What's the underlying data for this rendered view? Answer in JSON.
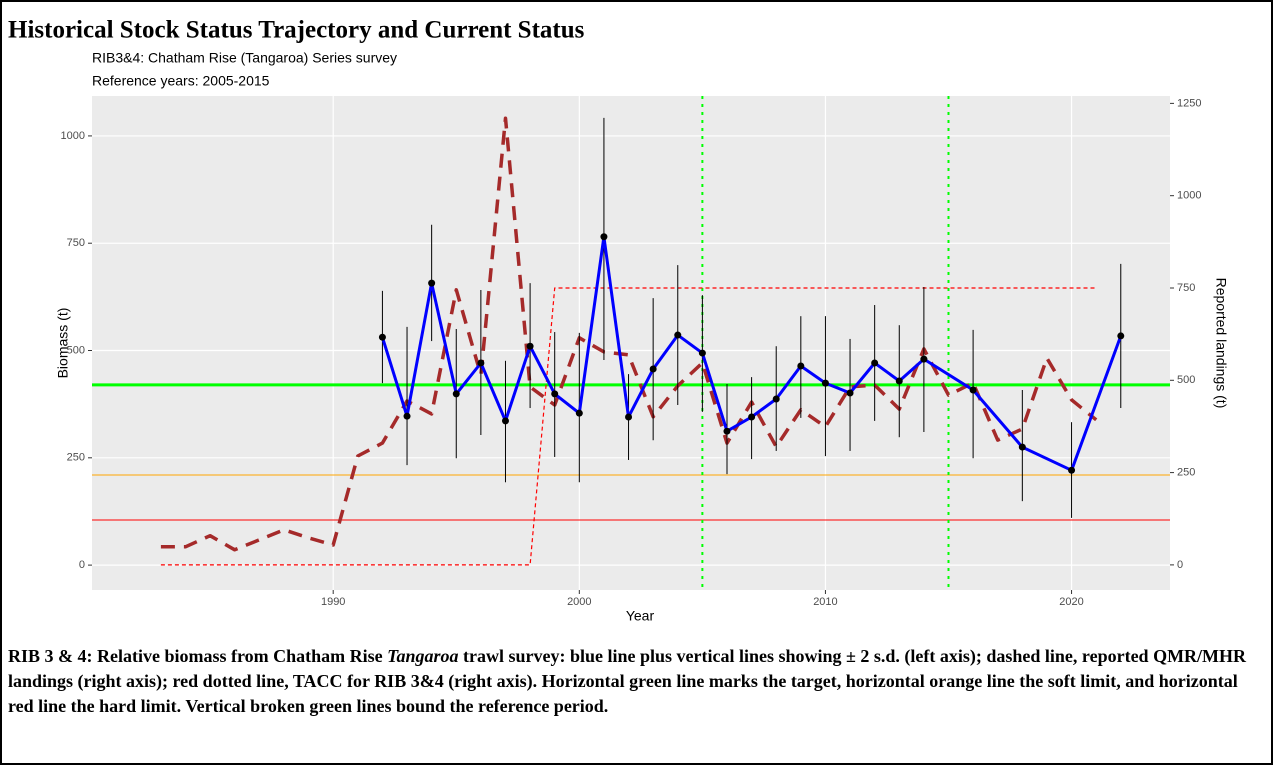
{
  "chart_data": {
    "type": "line",
    "title": "Historical Stock Status Trajectory and Current Status",
    "subtitle": [
      "RIB3&4: Chatham Rise (Tangaroa) Series survey",
      "Reference years: 2005-2015"
    ],
    "x_label": "Year",
    "y_label": "Biomass (t)",
    "y2_label": "Reported landings (t)",
    "xlim": [
      1980.2,
      2024.0
    ],
    "xticks": [
      1990,
      2000,
      2010,
      2020
    ],
    "ylim": [
      -58,
      1093
    ],
    "yticks": [
      0,
      250,
      500,
      750,
      1000
    ],
    "y2lim": [
      -68,
      1270
    ],
    "y2ticks": [
      0,
      250,
      500,
      750,
      1000,
      1250
    ],
    "grid": true,
    "series": [
      {
        "color": "#0000ff",
        "style": "solid",
        "markers": true,
        "x": [
          1992,
          1993,
          1994,
          1995,
          1996,
          1997,
          1998,
          1999,
          2000,
          2001,
          2002,
          2003,
          2004,
          2005,
          2006,
          2007,
          2008,
          2009,
          2010,
          2011,
          2012,
          2013,
          2014,
          2016,
          2018,
          2020,
          2022
        ],
        "values": [
          531,
          347,
          657,
          399,
          471,
          336,
          510,
          399,
          354,
          765,
          345,
          457,
          536,
          494,
          312,
          345,
          387,
          464,
          424,
          401,
          471,
          429,
          480,
          408,
          275,
          221,
          534
        ],
        "upper": [
          639,
          555,
          793,
          550,
          641,
          476,
          657,
          543,
          541,
          1042,
          445,
          622,
          699,
          629,
          422,
          438,
          510,
          580,
          580,
          527,
          606,
          559,
          648,
          548,
          408,
          333,
          702
        ],
        "lower": [
          424,
          233,
          522,
          249,
          303,
          193,
          366,
          252,
          193,
          478,
          245,
          291,
          373,
          357,
          212,
          247,
          266,
          343,
          254,
          266,
          336,
          298,
          310,
          249,
          149,
          110,
          366
        ]
      },
      {
        "color": "#a52a2a",
        "style": "dashed",
        "axis": "y2",
        "x": [
          1983,
          1984,
          1985,
          1986,
          1987,
          1988,
          1989,
          1990,
          1991,
          1992,
          1993,
          1994,
          1995,
          1996,
          1997,
          1998,
          1999,
          2000,
          2001,
          2002,
          2003,
          2004,
          2005,
          2006,
          2007,
          2008,
          2009,
          2010,
          2011,
          2012,
          2013,
          2014,
          2015,
          2016,
          2017,
          2018,
          2019,
          2020,
          2021
        ],
        "values": [
          49,
          49,
          79,
          41,
          68,
          95,
          73,
          54,
          295,
          330,
          444,
          409,
          745,
          514,
          1210,
          482,
          433,
          615,
          577,
          569,
          401,
          485,
          547,
          330,
          441,
          320,
          420,
          374,
          482,
          487,
          422,
          585,
          460,
          493,
          338,
          368,
          560,
          447,
          393
        ]
      },
      {
        "color": "#ff0000",
        "style": "dotted",
        "axis": "y2",
        "x": [
          1983,
          1998,
          1999,
          2021
        ],
        "values": [
          0,
          0,
          750,
          750
        ]
      }
    ],
    "hlines": [
      {
        "value": 420,
        "color": "#00ff00",
        "width": 3
      },
      {
        "value": 210,
        "color": "#ffa500",
        "width": 1
      },
      {
        "value": 105,
        "color": "#ff0000",
        "width": 1
      }
    ],
    "vlines": [
      {
        "value": 2005,
        "color": "#00ff00"
      },
      {
        "value": 2015,
        "color": "#00ff00"
      }
    ]
  },
  "caption": [
    "RIB 3 & 4: Relative biomass from Chatham Rise ",
    "Tangaroa",
    " trawl survey: blue line plus vertical lines showing ± 2 s.d. (left axis); dashed line, reported QMR/MHR landings (right axis); red dotted line, TACC for RIB 3&4 (right axis). Horizontal green line marks the target, horizontal orange line the soft limit, and horizontal red line the hard limit. Vertical broken green lines bound the reference period."
  ]
}
